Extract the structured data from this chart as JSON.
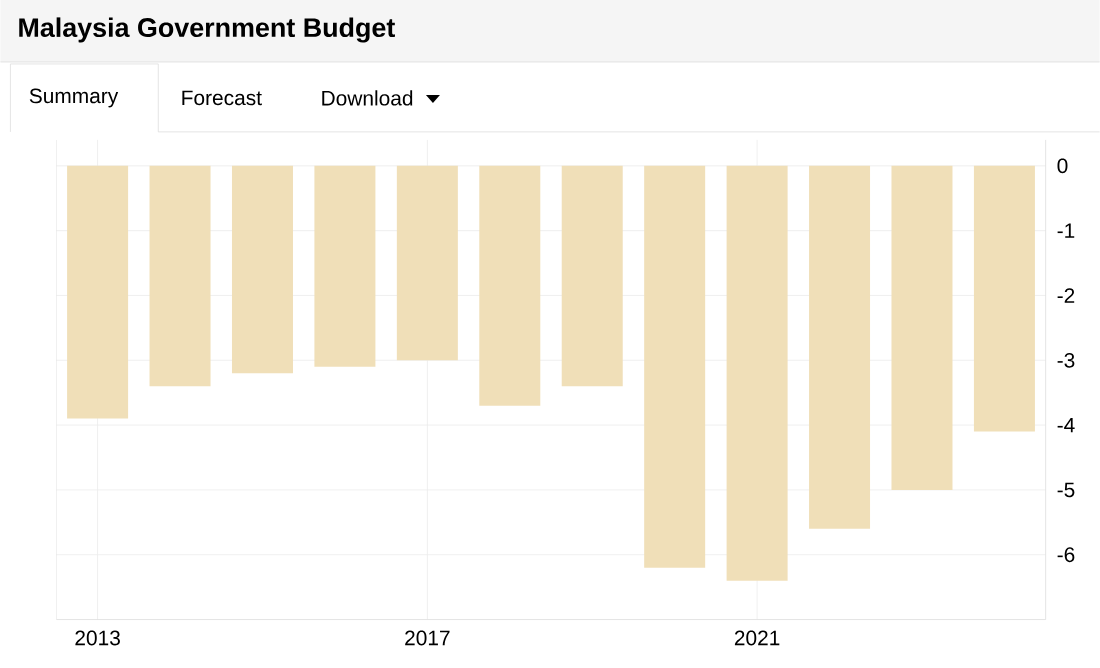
{
  "chart_data": {
    "type": "bar",
    "title": "Malaysia Government Budget",
    "annotations": [
      "Summary",
      "Forecast",
      "Download"
    ],
    "x": [
      2013,
      2014,
      2015,
      2016,
      2017,
      2018,
      2019,
      2020,
      2021,
      2022,
      2023,
      2024
    ],
    "values": [
      -3.9,
      -3.4,
      -3.2,
      -3.1,
      -3.0,
      -3.7,
      -3.4,
      -6.2,
      -6.4,
      -5.6,
      -5.0,
      -4.1
    ],
    "color": "#f0dfb8",
    "xlim": [
      2012.5,
      2024.5
    ],
    "xticks": [
      2013,
      2017,
      2021
    ],
    "ylim": [
      -7,
      0.4
    ],
    "yticks": [
      0,
      -1,
      -2,
      -3,
      -4,
      -5,
      -6
    ],
    "grid": true
  }
}
